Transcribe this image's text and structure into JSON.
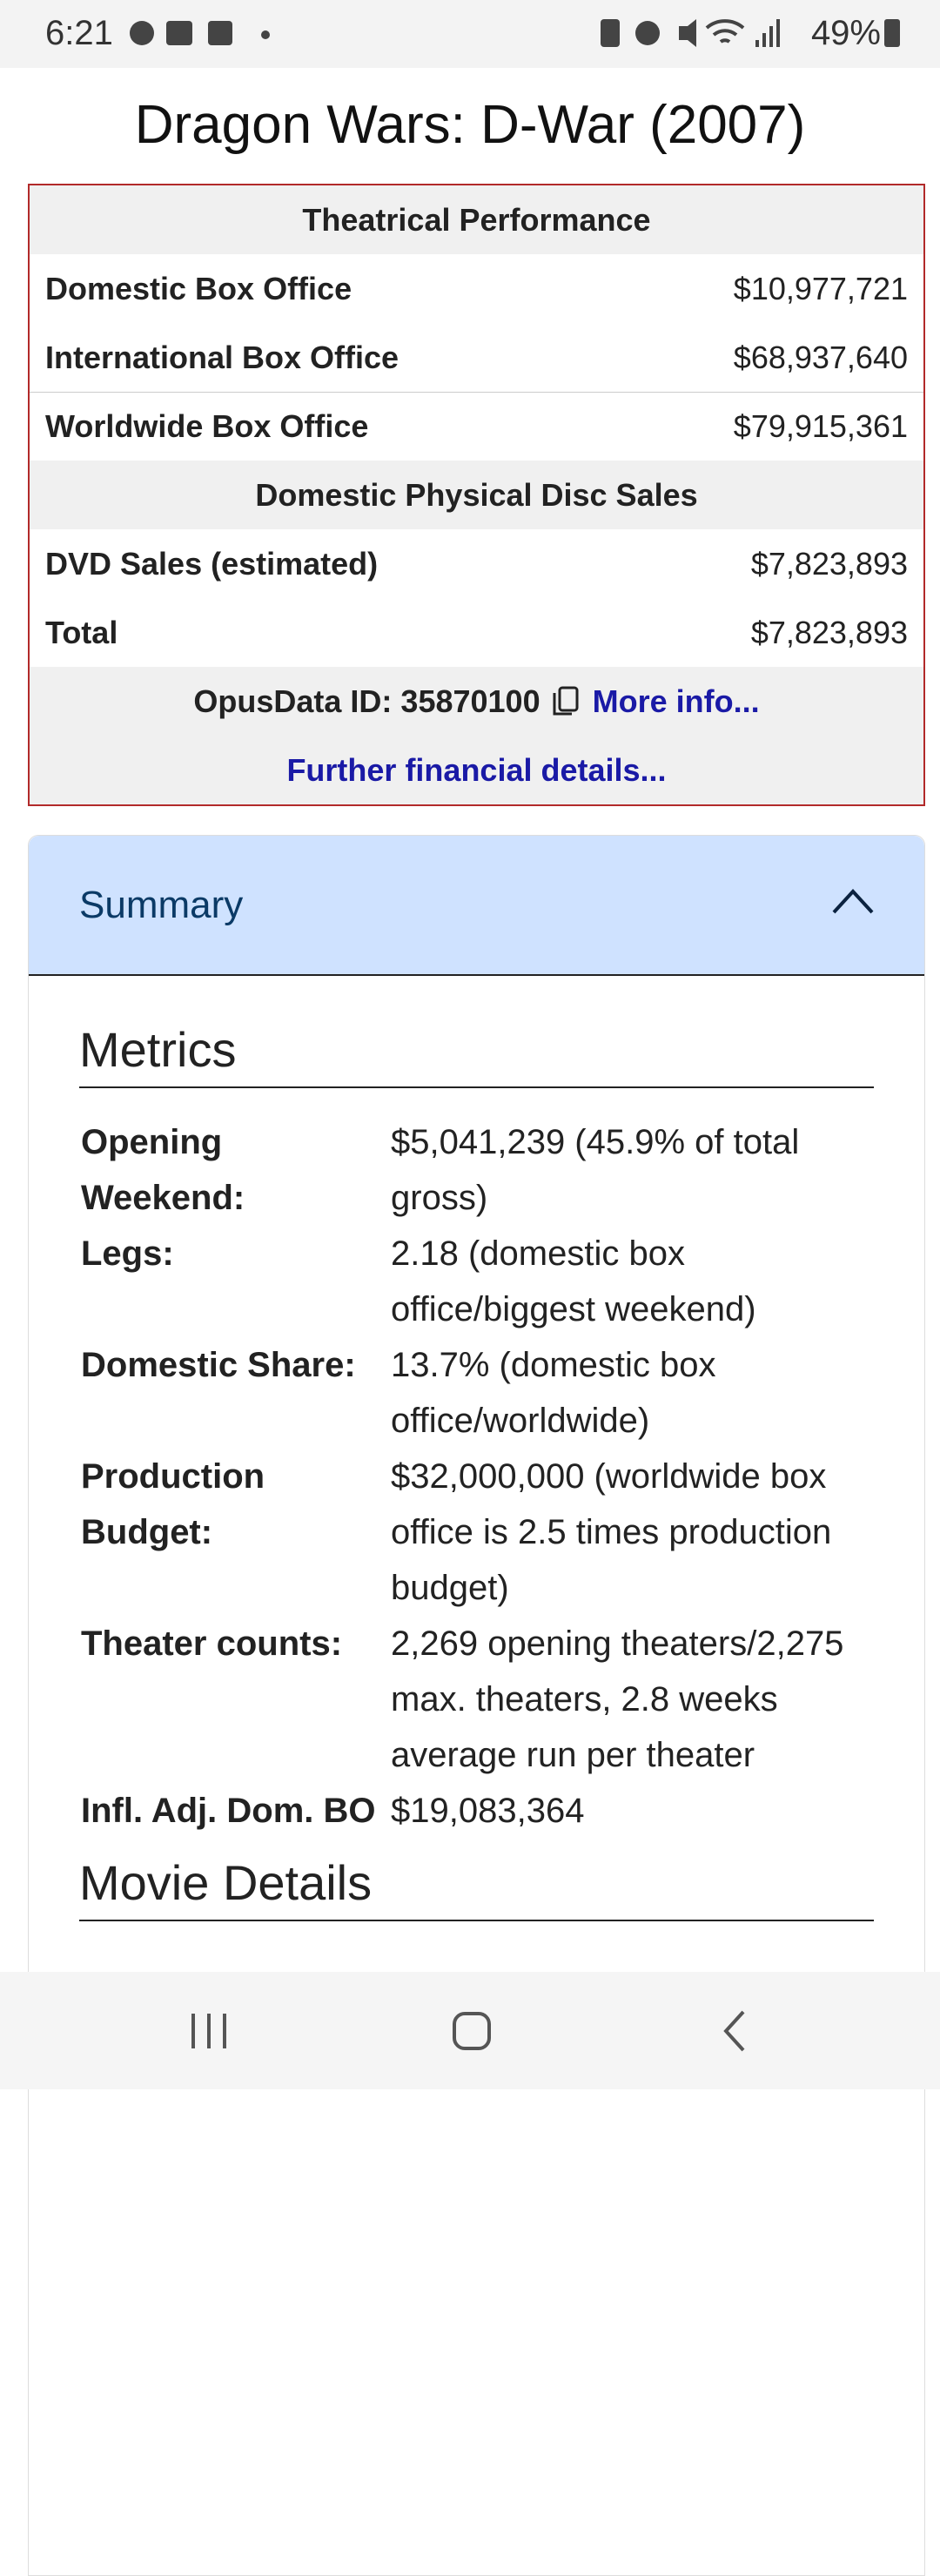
{
  "status_bar": {
    "time": "6:21",
    "battery": "49%"
  },
  "title": "Dragon Wars: D-War (2007)",
  "performance_table": {
    "sections": [
      {
        "heading": "Theatrical Performance",
        "rows": [
          [
            "Domestic Box Office",
            "$10,977,721"
          ],
          [
            "International Box Office",
            "$68,937,640"
          ],
          [
            "Worldwide Box Office",
            "$79,915,361"
          ]
        ]
      },
      {
        "heading": "Domestic Physical Disc Sales",
        "rows": [
          [
            "DVD Sales (estimated)",
            "$7,823,893"
          ],
          [
            "Total",
            "$7,823,893"
          ]
        ]
      }
    ],
    "opus_id": "OpusData ID: 35870100",
    "more_info": "More info...",
    "further_details": "Further financial details..."
  },
  "summary": {
    "heading": "Summary",
    "metrics": {
      "heading": "Metrics",
      "rows": [
        [
          "Opening Weekend:",
          "$5,041,239 (45.9% of total gross)"
        ],
        [
          "Legs:",
          "2.18 (domestic box office/biggest weekend)"
        ],
        [
          "Domestic Share:",
          "13.7% (domestic box office/worldwide)"
        ],
        [
          "Production Budget:",
          "$32,000,000 (worldwide box office is 2.5 times production budget)"
        ],
        [
          "Theater counts:",
          "2,269 opening theaters/2,275 max. theaters, 2.8 weeks average run per theater"
        ],
        [
          "Infl. Adj. Dom. BO",
          "$19,083,364"
        ]
      ]
    },
    "movie_details_heading": "Movie Details"
  }
}
